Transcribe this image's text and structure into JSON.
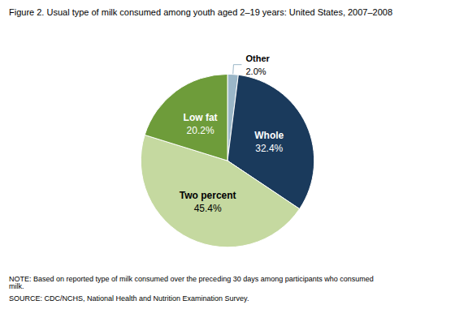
{
  "chart_data": {
    "type": "pie",
    "title": "Figure 2. Usual type of milk consumed among youth aged 2–19 years: United States, 2007–2008",
    "categories": [
      "Other",
      "Whole",
      "Two percent",
      "Low fat"
    ],
    "values": [
      2.0,
      32.4,
      45.4,
      20.2
    ],
    "value_labels": [
      "2.0%",
      "32.4%",
      "45.4%",
      "20.2%"
    ],
    "colors": [
      "#9bb7c8",
      "#1a3a5c",
      "#c5d9a0",
      "#6e9c3a"
    ],
    "data_labels": true,
    "annotations": [
      "NOTE: Based on reported type of milk consumed over the preceding 30 days among participants who consumed milk.",
      "SOURCE: CDC/NCHS, National Health and Nutrition Examination Survey."
    ]
  }
}
